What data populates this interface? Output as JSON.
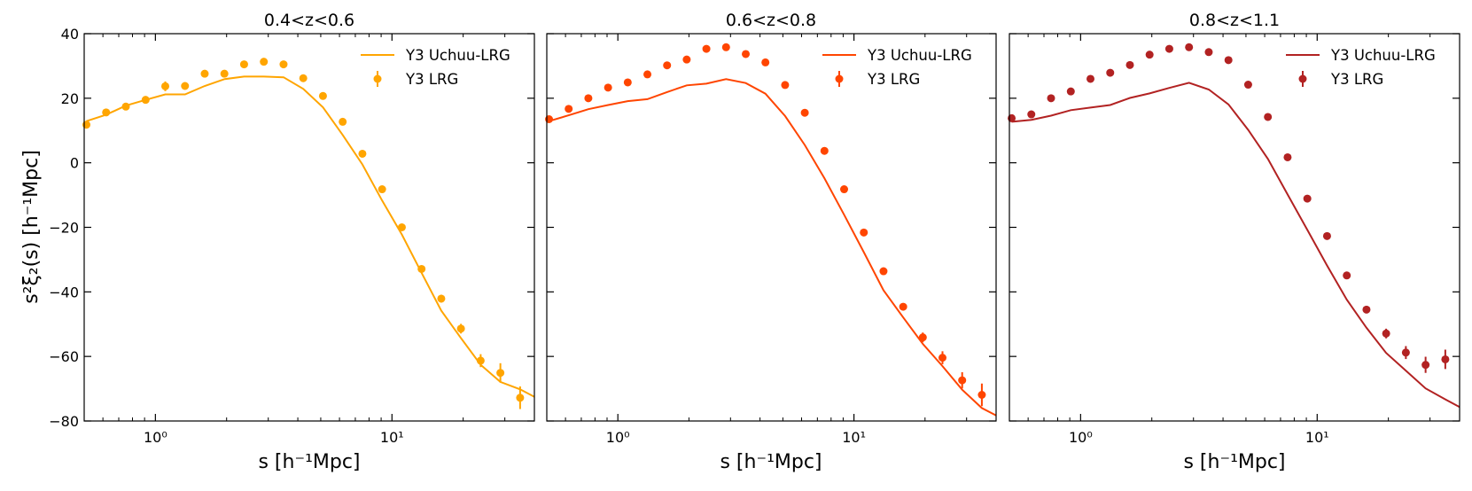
{
  "chart_data": [
    {
      "type": "line",
      "title": "0.4<z<0.6",
      "xlabel": "s [h⁻¹Mpc]",
      "ylabel": "s²ξ₂(s) [h⁻¹Mpc]",
      "xscale": "log",
      "xlim": [
        0.5,
        40
      ],
      "ylim": [
        -80,
        40
      ],
      "yticks": [
        40,
        20,
        0,
        -20,
        -40,
        -60,
        -80
      ],
      "ytick_labels": [
        "40",
        "20",
        "0",
        "−20",
        "−40",
        "−60",
        "−80"
      ],
      "xticks": [
        1,
        10
      ],
      "xtick_labels": [
        "10⁰",
        "10¹"
      ],
      "grid": false,
      "legend_position": "top-right",
      "color": "#FFA500",
      "series": [
        {
          "name": "Y3 Uchuu-LRG",
          "kind": "line",
          "x": [
            0.511,
            0.619,
            0.75,
            0.909,
            1.101,
            1.334,
            1.616,
            1.957,
            2.371,
            2.873,
            3.481,
            4.217,
            5.109,
            6.19,
            7.499,
            9.085,
            11.01,
            13.34,
            16.16,
            19.57,
            23.71,
            28.73,
            34.81,
            40
          ],
          "y": [
            12.9,
            14.9,
            17.7,
            19.5,
            21.2,
            21.2,
            23.8,
            25.9,
            26.7,
            26.7,
            26.5,
            22.9,
            17.2,
            8.6,
            -0.5,
            -11.7,
            -22.2,
            -34.1,
            -45.8,
            -54.3,
            -62.6,
            -67.9,
            -70.2,
            -72.5
          ]
        },
        {
          "name": "Y3 LRG",
          "kind": "errorbar",
          "x": [
            0.511,
            0.619,
            0.75,
            0.909,
            1.101,
            1.334,
            1.616,
            1.957,
            2.371,
            2.873,
            3.481,
            4.217,
            5.109,
            6.19,
            7.499,
            9.085,
            11.01,
            13.34,
            16.16,
            19.57,
            23.71,
            28.73,
            34.81
          ],
          "y": [
            11.8,
            15.6,
            17.4,
            19.5,
            23.7,
            23.8,
            27.6,
            27.6,
            30.5,
            31.3,
            30.5,
            26.2,
            20.7,
            12.7,
            2.8,
            -8.2,
            -20.0,
            -32.9,
            -42.1,
            -51.4,
            -61.3,
            -65.1,
            -72.8
          ],
          "yerr": [
            0.8,
            0.8,
            0.8,
            0.8,
            1.5,
            0.9,
            0.9,
            0.9,
            0.9,
            0.9,
            0.9,
            0.9,
            0.9,
            0.9,
            0.9,
            1.0,
            1.0,
            1.0,
            1.2,
            1.5,
            2.0,
            3.0,
            3.5
          ]
        }
      ]
    },
    {
      "type": "line",
      "title": "0.6<z<0.8",
      "xlabel": "s [h⁻¹Mpc]",
      "xscale": "log",
      "xlim": [
        0.5,
        40
      ],
      "ylim": [
        -80,
        40
      ],
      "yticks": [
        40,
        20,
        0,
        -20,
        -40,
        -60,
        -80
      ],
      "xticks": [
        1,
        10
      ],
      "xtick_labels": [
        "10⁰",
        "10¹"
      ],
      "grid": false,
      "legend_position": "top-right",
      "color": "#FF4500",
      "series": [
        {
          "name": "Y3 Uchuu-LRG",
          "kind": "line",
          "x": [
            0.511,
            0.619,
            0.75,
            0.909,
            1.101,
            1.334,
            1.616,
            1.957,
            2.371,
            2.873,
            3.481,
            4.217,
            5.109,
            6.19,
            7.499,
            9.085,
            11.01,
            13.34,
            16.16,
            19.57,
            23.71,
            28.73,
            34.81,
            40
          ],
          "y": [
            12.9,
            14.7,
            16.6,
            17.9,
            19.1,
            19.7,
            21.9,
            24.0,
            24.5,
            25.9,
            24.7,
            21.4,
            14.5,
            5.5,
            -4.8,
            -16.1,
            -27.7,
            -39.5,
            -47.9,
            -56.1,
            -63.0,
            -70.3,
            -76.0,
            -78.3
          ]
        },
        {
          "name": "Y3 LRG",
          "kind": "errorbar",
          "x": [
            0.511,
            0.619,
            0.75,
            0.909,
            1.101,
            1.334,
            1.616,
            1.957,
            2.371,
            2.873,
            3.481,
            4.217,
            5.109,
            6.19,
            7.499,
            9.085,
            11.01,
            13.34,
            16.16,
            19.57,
            23.71,
            28.73,
            34.81
          ],
          "y": [
            13.5,
            16.7,
            20.0,
            23.3,
            24.9,
            27.4,
            30.2,
            32.0,
            35.3,
            35.8,
            33.7,
            31.1,
            24.1,
            15.5,
            3.7,
            -8.2,
            -21.6,
            -33.6,
            -44.6,
            -54.1,
            -60.4,
            -67.4,
            -71.9
          ],
          "yerr": [
            0.8,
            0.8,
            0.8,
            0.8,
            0.8,
            0.8,
            0.8,
            0.8,
            0.8,
            0.8,
            0.8,
            0.8,
            0.8,
            0.8,
            0.8,
            0.8,
            0.9,
            0.9,
            1.0,
            1.5,
            2.0,
            2.5,
            3.5
          ]
        }
      ]
    },
    {
      "type": "line",
      "title": "0.8<z<1.1",
      "xlabel": "s [h⁻¹Mpc]",
      "xscale": "log",
      "xlim": [
        0.5,
        40
      ],
      "ylim": [
        -80,
        40
      ],
      "yticks": [
        40,
        20,
        0,
        -20,
        -40,
        -60,
        -80
      ],
      "xticks": [
        1,
        10
      ],
      "xtick_labels": [
        "10⁰",
        "10¹"
      ],
      "grid": false,
      "legend_position": "top-right",
      "color": "#B22222",
      "series": [
        {
          "name": "Y3 Uchuu-LRG",
          "kind": "line",
          "x": [
            0.511,
            0.619,
            0.75,
            0.909,
            1.101,
            1.334,
            1.616,
            1.957,
            2.371,
            2.873,
            3.481,
            4.217,
            5.109,
            6.19,
            7.499,
            9.085,
            11.01,
            13.34,
            16.16,
            19.57,
            23.71,
            28.73,
            34.81,
            40
          ],
          "y": [
            12.7,
            13.3,
            14.6,
            16.3,
            17.1,
            17.9,
            20.1,
            21.5,
            23.2,
            24.8,
            22.7,
            18.1,
            10.2,
            1.2,
            -9.8,
            -20.8,
            -31.8,
            -42.4,
            -51.1,
            -58.9,
            -64.4,
            -69.9,
            -73.3,
            -75.7
          ]
        },
        {
          "name": "Y3 LRG",
          "kind": "errorbar",
          "x": [
            0.511,
            0.619,
            0.75,
            0.909,
            1.101,
            1.334,
            1.616,
            1.957,
            2.371,
            2.873,
            3.481,
            4.217,
            5.109,
            6.19,
            7.499,
            9.085,
            11.01,
            13.34,
            16.16,
            19.57,
            23.71,
            28.73,
            34.81
          ],
          "y": [
            13.8,
            15.0,
            20.0,
            22.1,
            26.0,
            27.9,
            30.3,
            33.5,
            35.3,
            35.8,
            34.3,
            31.8,
            24.2,
            14.2,
            1.7,
            -11.1,
            -22.7,
            -34.9,
            -45.5,
            -52.9,
            -58.8,
            -62.6,
            -60.9
          ],
          "yerr": [
            0.8,
            0.8,
            0.8,
            0.8,
            0.8,
            0.8,
            0.8,
            0.8,
            0.8,
            0.8,
            0.8,
            0.8,
            0.8,
            0.8,
            0.8,
            0.8,
            0.9,
            0.9,
            1.0,
            1.5,
            2.0,
            2.5,
            3.0
          ]
        }
      ]
    }
  ]
}
